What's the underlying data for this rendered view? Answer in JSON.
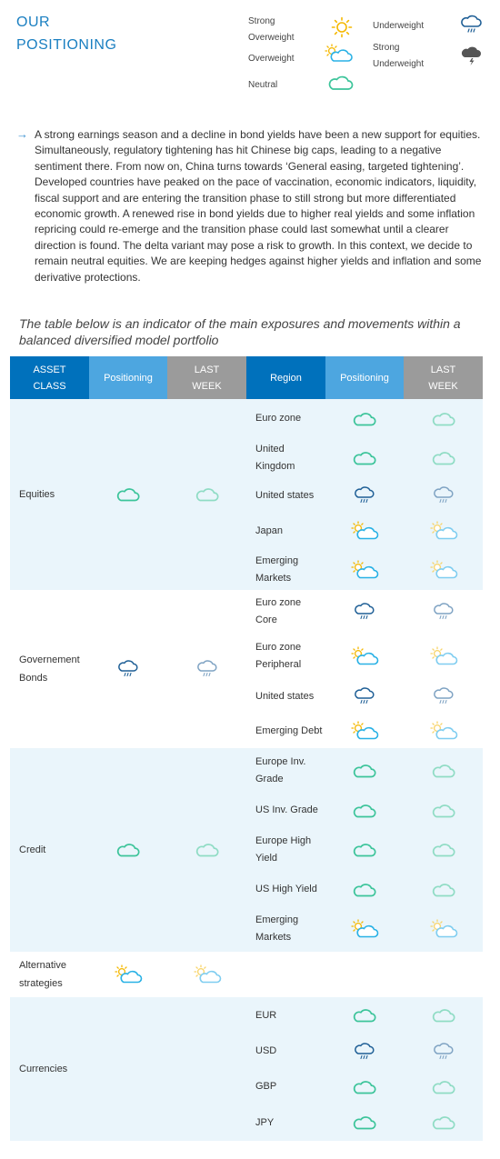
{
  "header": {
    "title_line1": "OUR",
    "title_line2": "POSITIONING"
  },
  "legend": {
    "strong_overweight_line1": "Strong",
    "strong_overweight_line2": "Overweight",
    "overweight": "Overweight",
    "neutral": "Neutral",
    "underweight": "Underweight",
    "strong_underweight_line1": "Strong",
    "strong_underweight_line2": "Underweight"
  },
  "intro": {
    "text": "A strong earnings season and a decline in bond yields have been a new support for equities. Simultaneously, regulatory tightening has hit Chinese big caps, leading to a negative sentiment there. From now on, China turns towards ‘General easing, targeted tightening’. Developed countries have peaked on the pace of vaccination, economic indicators, liquidity, fiscal support and are entering the transition phase to still strong but more differentiated economic growth. A renewed rise in bond yields due to higher real yields and some inflation repricing could re-emerge and the transition phase could last somewhat until a clearer direction is found. The delta variant may pose a risk to growth. In this context, we decide to remain neutral equities. We are keeping hedges against higher yields and inflation and some derivative protections."
  },
  "caption": "The table below is an indicator of the main exposures and movements within a balanced diversified model portfolio",
  "table": {
    "headers": {
      "asset_class_l1": "ASSET",
      "asset_class_l2": "CLASS",
      "positioning": "Positioning",
      "last_week_l1": "LAST",
      "last_week_l2": "WEEK",
      "region": "Region",
      "positioning2": "Positioning",
      "last_week2_l1": "LAST",
      "last_week2_l2": "WEEK"
    },
    "equities": {
      "label": "Equities",
      "positioning": "neutral",
      "last_week": "neutral",
      "rows": [
        {
          "l1": "Euro zone",
          "l2": "",
          "pos": "neutral",
          "lw": "neutral"
        },
        {
          "l1": "United",
          "l2": "Kingdom",
          "pos": "neutral",
          "lw": "neutral"
        },
        {
          "l1": "United states",
          "l2": "",
          "pos": "underweight",
          "lw": "underweight"
        },
        {
          "l1": "Japan",
          "l2": "",
          "pos": "overweight",
          "lw": "overweight"
        },
        {
          "l1": "Emerging",
          "l2": "Markets",
          "pos": "overweight",
          "lw": "overweight"
        }
      ]
    },
    "bonds": {
      "label1": "Governement",
      "label2": "Bonds",
      "positioning": "underweight",
      "last_week": "underweight",
      "rows": [
        {
          "l1": "Euro zone",
          "l2": "Core",
          "pos": "underweight",
          "lw": "underweight"
        },
        {
          "l1": "Euro zone",
          "l2": "Peripheral",
          "pos": "overweight",
          "lw": "overweight"
        },
        {
          "l1": "United states",
          "l2": "",
          "pos": "underweight",
          "lw": "underweight"
        },
        {
          "l1": "Emerging Debt",
          "l2": "",
          "pos": "overweight",
          "lw": "overweight"
        }
      ]
    },
    "credit": {
      "label": "Credit",
      "positioning": "neutral",
      "last_week": "neutral",
      "rows": [
        {
          "l1": "Europe Inv.",
          "l2": "Grade",
          "pos": "neutral",
          "lw": "neutral"
        },
        {
          "l1": "US Inv. Grade",
          "l2": "",
          "pos": "neutral",
          "lw": "neutral"
        },
        {
          "l1": "Europe High",
          "l2": "Yield",
          "pos": "neutral",
          "lw": "neutral"
        },
        {
          "l1": "US High Yield",
          "l2": "",
          "pos": "neutral",
          "lw": "neutral"
        },
        {
          "l1": "Emerging",
          "l2": "Markets",
          "pos": "overweight",
          "lw": "overweight"
        }
      ]
    },
    "alternative": {
      "label1": "Alternative",
      "label2": "strategies",
      "positioning": "overweight",
      "last_week": "overweight"
    },
    "currencies": {
      "label": "Currencies",
      "rows": [
        {
          "l1": "EUR",
          "l2": "",
          "pos": "neutral",
          "lw": "neutral"
        },
        {
          "l1": "USD",
          "l2": "",
          "pos": "underweight",
          "lw": "underweight"
        },
        {
          "l1": "GBP",
          "l2": "",
          "pos": "neutral",
          "lw": "neutral"
        },
        {
          "l1": "JPY",
          "l2": "",
          "pos": "neutral",
          "lw": "neutral"
        }
      ]
    }
  },
  "colors": {
    "header_dark": "#0071bc",
    "header_light": "#4da6e0",
    "header_grey": "#9b9b9b",
    "shaded_row": "#eaf5fb",
    "neutral_icon": "#3cc49a",
    "underweight_icon": "#1f5f96",
    "overweight_sun": "#f5b800",
    "overweight_cloud": "#29b1e5"
  }
}
